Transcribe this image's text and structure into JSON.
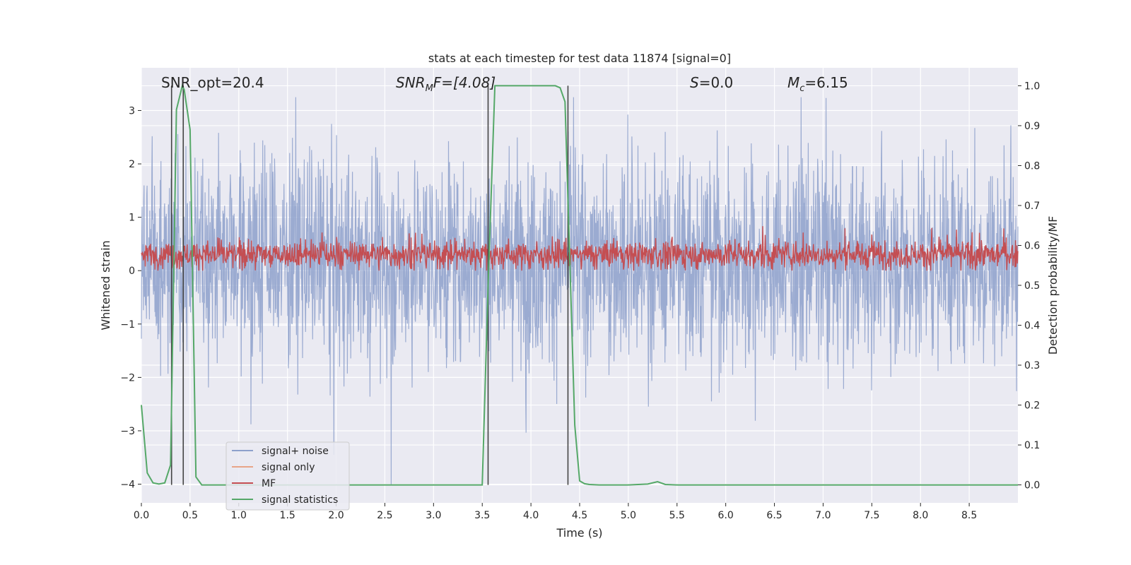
{
  "chart_data": {
    "type": "line",
    "title": "stats at each timestep for test data 11874 [signal=0]",
    "xlabel": "Time (s)",
    "ylabel_left": "Whitened strain",
    "ylabel_right": "Detection probability/MF",
    "xlim": [
      0,
      9
    ],
    "ylim_left": [
      -4.35,
      3.8
    ],
    "ylim_right": [
      -0.045,
      1.045
    ],
    "x_ticks": [
      "0.0",
      "0.5",
      "1.0",
      "1.5",
      "2.0",
      "2.5",
      "3.0",
      "3.5",
      "4.0",
      "4.5",
      "5.0",
      "5.5",
      "6.0",
      "6.5",
      "7.0",
      "7.5",
      "8.0",
      "8.5"
    ],
    "y_ticks_left": [
      "−4",
      "−3",
      "−2",
      "−1",
      "0",
      "1",
      "2",
      "3"
    ],
    "y_ticks_right": [
      "0.0",
      "0.1",
      "0.2",
      "0.3",
      "0.4",
      "0.5",
      "0.6",
      "0.7",
      "0.8",
      "0.9",
      "1.0"
    ],
    "grid": true,
    "legend_position": "lower-left",
    "annotations": {
      "snr_opt": "SNR_opt=20.4",
      "snr_mf_main": "SNR",
      "snr_mf_sub": "M",
      "snr_mf_rest": "F=[4.08]",
      "s_italic": "S",
      "s_rest": "=0.0",
      "mc_italic": "M",
      "mc_sub": "c",
      "mc_rest": "=6.15"
    },
    "vertical_lines_x": [
      0.31,
      0.43,
      3.56,
      4.38
    ],
    "series": [
      {
        "name": "signal+ noise",
        "color": "#8da0cb",
        "axis": "left",
        "style": "noise band",
        "dense_range": [
          -1.8,
          2.2
        ],
        "extreme_range": [
          -4.0,
          3.25
        ]
      },
      {
        "name": "signal only",
        "color": "#e8a488",
        "axis": "left",
        "values": []
      },
      {
        "name": "MF",
        "color": "#c44e52",
        "axis": "left",
        "style": "noise band",
        "dense_range": [
          0.0,
          0.65
        ],
        "extreme_range": [
          0.0,
          0.9
        ]
      },
      {
        "name": "signal statistics",
        "color": "#55a868",
        "axis": "right",
        "x": [
          0.0,
          0.06,
          0.12,
          0.18,
          0.24,
          0.3,
          0.36,
          0.42,
          0.44,
          0.5,
          0.56,
          0.62,
          0.8,
          1.5,
          2.5,
          3.0,
          3.5,
          3.56,
          3.63,
          3.7,
          4.0,
          4.25,
          4.3,
          4.35,
          4.45,
          4.5,
          4.55,
          4.6,
          4.7,
          5.0,
          5.2,
          5.3,
          5.38,
          5.5,
          6.0,
          7.0,
          8.0,
          9.0
        ],
        "values": [
          0.2,
          0.03,
          0.005,
          0.002,
          0.005,
          0.05,
          0.94,
          1.0,
          0.99,
          0.89,
          0.02,
          0.0,
          0.0,
          0.0,
          0.0,
          0.0,
          0.0,
          0.5,
          1.0,
          1.0,
          1.0,
          1.0,
          0.995,
          0.96,
          0.15,
          0.01,
          0.003,
          0.001,
          0.0,
          0.0,
          0.002,
          0.008,
          0.001,
          0.0,
          0.0,
          0.0,
          0.0,
          0.0
        ]
      }
    ]
  }
}
